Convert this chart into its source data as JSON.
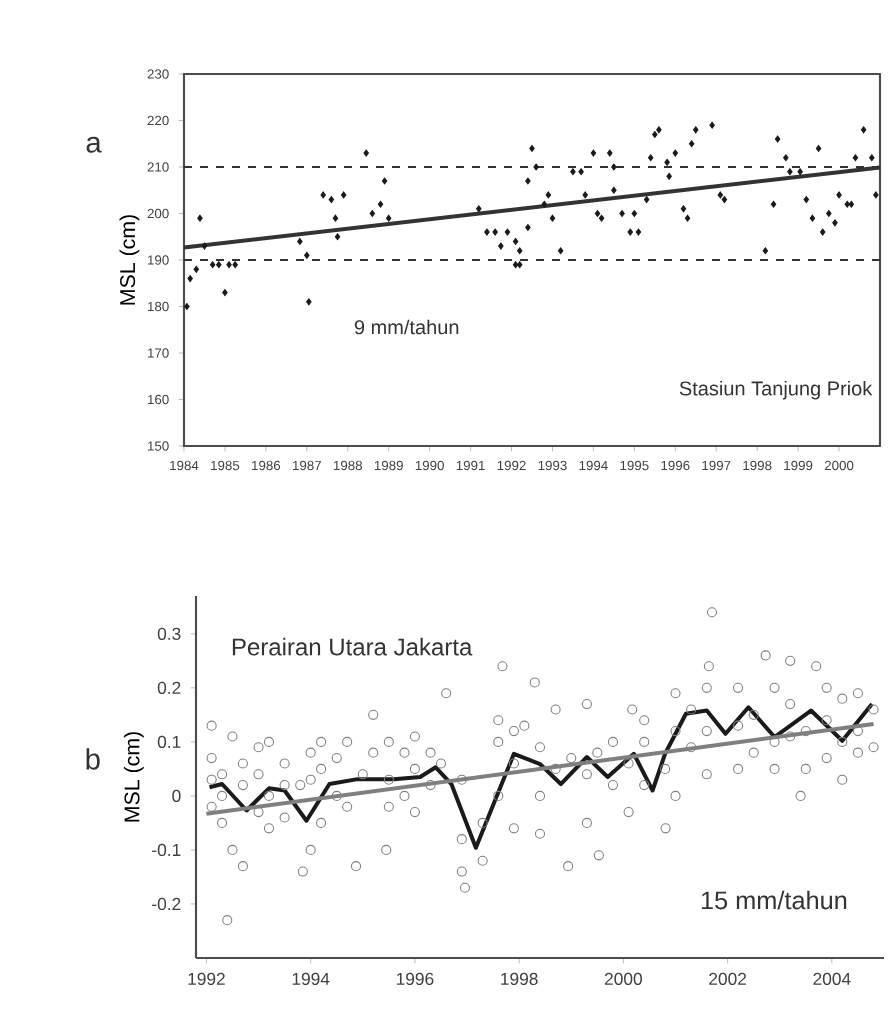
{
  "chart_data": [
    {
      "type": "scatter",
      "ylabel": "MSL (cm)",
      "xlim": [
        1984,
        2001
      ],
      "ylim": [
        150,
        230
      ],
      "xticks": [
        1984,
        1985,
        1986,
        1987,
        1988,
        1989,
        1990,
        1991,
        1992,
        1993,
        1994,
        1995,
        1996,
        1997,
        1998,
        1999,
        2000
      ],
      "yticks": [
        150,
        160,
        170,
        180,
        190,
        200,
        210,
        220,
        230
      ],
      "annotations": [
        "a",
        "9 mm/tahun",
        "Stasiun Tanjung Priok"
      ],
      "ref_lines": [
        {
          "axis": "y",
          "value": 210,
          "color": "#333333",
          "line_style": "dashed"
        },
        {
          "axis": "y",
          "value": 190,
          "color": "#333333",
          "line_style": "dashed"
        }
      ],
      "series": [
        {
          "type": "scatter",
          "color": "#1a1a1a",
          "marker": "diamond",
          "x": [
            1984.07,
            1984.15,
            1984.3,
            1984.39,
            1984.5,
            1984.7,
            1984.85,
            1985.0,
            1985.1,
            1985.25,
            1986.83,
            1987.0,
            1987.05,
            1987.4,
            1987.6,
            1987.7,
            1987.75,
            1987.9,
            1988.45,
            1988.6,
            1988.8,
            1988.9,
            1989.0,
            1991.2,
            1991.4,
            1991.6,
            1991.74,
            1991.9,
            1992.1,
            1992.1,
            1992.2,
            1992.2,
            1992.4,
            1992.4,
            1992.5,
            1992.6,
            1992.8,
            1992.9,
            1993.0,
            1993.2,
            1993.5,
            1993.7,
            1993.8,
            1994.0,
            1994.1,
            1994.2,
            1994.4,
            1994.5,
            1994.5,
            1994.7,
            1994.9,
            1995.0,
            1995.1,
            1995.3,
            1995.4,
            1995.5,
            1995.6,
            1995.8,
            1995.85,
            1996.0,
            1996.2,
            1996.3,
            1996.4,
            1996.5,
            1996.9,
            1997.1,
            1997.2,
            1998.2,
            1998.4,
            1998.5,
            1998.7,
            1998.8,
            1999.05,
            1999.2,
            1999.35,
            1999.5,
            1999.6,
            1999.75,
            1999.9,
            2000.0,
            2000.2,
            2000.3,
            2000.4,
            2000.6,
            2000.8,
            2000.9
          ],
          "values": [
            180,
            186,
            188,
            199,
            193,
            189,
            189,
            183,
            189,
            189,
            194,
            191,
            181,
            204,
            203,
            199,
            195,
            204,
            213,
            200,
            202,
            207,
            199,
            201,
            196,
            196,
            193,
            196,
            194,
            189,
            192,
            189,
            197,
            207,
            214,
            210,
            202,
            204,
            199,
            192,
            209,
            209,
            204,
            213,
            200,
            199,
            213,
            205,
            210,
            200,
            196,
            200,
            196,
            203,
            212,
            217,
            218,
            211,
            208,
            213,
            201,
            199,
            215,
            218,
            219,
            204,
            203,
            192,
            202,
            216,
            212,
            209,
            209,
            203,
            199,
            214,
            196,
            200,
            198,
            204,
            202,
            202,
            212,
            218,
            212,
            204
          ]
        },
        {
          "type": "line",
          "color": "#333333",
          "x": [
            1984,
            2001
          ],
          "values": [
            192.7,
            209.9
          ]
        }
      ]
    },
    {
      "type": "scatter",
      "ylabel": "MSL (cm)",
      "xlim": [
        1991.8,
        2005
      ],
      "ylim": [
        -0.3,
        0.37
      ],
      "xticks": [
        1992,
        1994,
        1996,
        1998,
        2000,
        2002,
        2004
      ],
      "yticks": [
        {
          "value": -0.2,
          "label": "-0.2"
        },
        {
          "value": -0.1,
          "label": "-0.1"
        },
        0,
        0.1,
        0.2,
        0.3
      ],
      "annotations": [
        "b",
        "Perairan Utara Jakarta",
        "15 mm/tahun"
      ],
      "series": [
        {
          "type": "scatter",
          "color": "#808080",
          "marker": "circle",
          "x": [
            1992.1,
            1992.1,
            1992.1,
            1992.1,
            1992.3,
            1992.3,
            1992.3,
            1992.4,
            1992.5,
            1992.5,
            1992.7,
            1992.7,
            1992.7,
            1993.0,
            1993.0,
            1993.0,
            1993.2,
            1993.2,
            1993.2,
            1993.5,
            1993.5,
            1993.5,
            1993.8,
            1993.85,
            1994.0,
            1994.0,
            1994.0,
            1994.2,
            1994.2,
            1994.2,
            1994.5,
            1994.5,
            1994.7,
            1994.7,
            1994.87,
            1995.0,
            1995.2,
            1995.2,
            1995.45,
            1995.5,
            1995.5,
            1995.5,
            1995.8,
            1995.8,
            1996.0,
            1996.0,
            1996.0,
            1996.3,
            1996.3,
            1996.6,
            1996.5,
            1996.9,
            1996.9,
            1996.9,
            1996.96,
            1997.3,
            1997.3,
            1997.68,
            1997.6,
            1997.6,
            1997.6,
            1997.9,
            1997.9,
            1997.9,
            1998.3,
            1998.1,
            1998.4,
            1998.4,
            1998.4,
            1998.7,
            1998.7,
            1998.94,
            1999.0,
            1999.3,
            1999.3,
            1999.3,
            1999.53,
            1999.5,
            1999.8,
            1999.8,
            2000.17,
            2000.1,
            2000.1,
            2000.4,
            2000.4,
            2000.4,
            2000.8,
            2000.81,
            2001.0,
            2001.0,
            2001.0,
            2001.64,
            2001.3,
            2001.3,
            2001.6,
            2001.6,
            2001.6,
            2001.7,
            2002.2,
            2002.2,
            2002.2,
            2002.73,
            2002.5,
            2002.5,
            2003.4,
            2002.9,
            2002.9,
            2002.9,
            2003.2,
            2003.2,
            2003.2,
            2003.7,
            2003.5,
            2003.5,
            2003.9,
            2003.9,
            2003.9,
            2004.2,
            2004.2,
            2004.2,
            2004.5,
            2004.5,
            2004.5,
            2004.8,
            2004.8
          ],
          "values": [
            0.13,
            0.07,
            0.03,
            -0.02,
            0.04,
            -0.05,
            0.0,
            -0.23,
            0.11,
            -0.1,
            0.06,
            -0.13,
            0.02,
            0.09,
            0.04,
            -0.03,
            0.1,
            0.0,
            -0.06,
            0.06,
            0.02,
            -0.04,
            0.02,
            -0.14,
            -0.1,
            0.03,
            0.08,
            0.1,
            0.05,
            -0.05,
            0.07,
            0.0,
            0.1,
            -0.02,
            -0.13,
            0.04,
            0.15,
            0.08,
            -0.1,
            0.1,
            0.03,
            -0.02,
            0.08,
            0.0,
            0.11,
            0.05,
            -0.03,
            0.08,
            0.02,
            0.19,
            0.06,
            0.03,
            -0.08,
            -0.14,
            -0.17,
            -0.12,
            -0.05,
            0.24,
            0.14,
            0.1,
            0.0,
            0.12,
            0.06,
            -0.06,
            0.21,
            0.13,
            0.09,
            0.0,
            -0.07,
            0.16,
            0.05,
            -0.13,
            0.07,
            0.17,
            0.04,
            -0.05,
            -0.11,
            0.08,
            0.1,
            0.02,
            0.16,
            0.06,
            -0.03,
            0.14,
            0.1,
            0.02,
            0.05,
            -0.06,
            0.19,
            0.12,
            0.0,
            0.24,
            0.16,
            0.09,
            0.2,
            0.12,
            0.04,
            0.34,
            0.2,
            0.13,
            0.05,
            0.26,
            0.15,
            0.08,
            0.0,
            0.2,
            0.1,
            0.05,
            0.25,
            0.17,
            0.11,
            0.24,
            0.12,
            0.05,
            0.2,
            0.14,
            0.07,
            0.18,
            0.1,
            0.03,
            0.19,
            0.12,
            0.08,
            0.16,
            0.09
          ]
        },
        {
          "type": "line",
          "color": "#1a1a1a",
          "x": [
            1992.06,
            1992.3,
            1992.77,
            1993.2,
            1993.5,
            1993.92,
            1994.36,
            1994.9,
            1995.6,
            1996.1,
            1996.4,
            1996.7,
            1997.17,
            1997.9,
            1998.4,
            1998.8,
            1999.3,
            1999.7,
            2000.2,
            2000.56,
            2000.8,
            2001.2,
            2001.6,
            2001.96,
            2002.4,
            2002.9,
            2003.6,
            2004.2,
            2004.77
          ],
          "values": [
            0.016,
            0.022,
            -0.027,
            0.014,
            0.01,
            -0.046,
            0.022,
            0.031,
            0.031,
            0.035,
            0.053,
            0.022,
            -0.096,
            0.078,
            0.059,
            0.022,
            0.072,
            0.035,
            0.078,
            0.01,
            0.078,
            0.152,
            0.158,
            0.115,
            0.164,
            0.109,
            0.158,
            0.102,
            0.17
          ]
        },
        {
          "type": "line",
          "color": "#7f7f7f",
          "x": [
            1992,
            2004.8
          ],
          "values": [
            -0.033,
            0.133
          ]
        }
      ]
    }
  ]
}
